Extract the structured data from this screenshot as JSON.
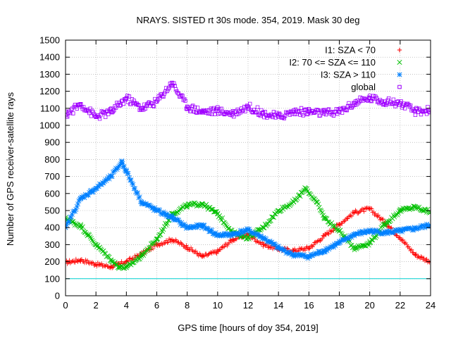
{
  "chart_data": {
    "type": "scatter",
    "title": "NRAYS. SISTED rt 30s mode. 354, 2019. Mask 30 deg",
    "xlabel": "GPS time [hours of doy 354, 2019]",
    "ylabel": "Number of GPS receiver-satellite rays",
    "xlim": [
      0,
      24
    ],
    "ylim": [
      0,
      1500
    ],
    "xticks": [
      0,
      2,
      4,
      6,
      8,
      10,
      12,
      14,
      16,
      18,
      20,
      22,
      24
    ],
    "yticks": [
      0,
      100,
      200,
      300,
      400,
      500,
      600,
      700,
      800,
      900,
      1000,
      1100,
      1200,
      1300,
      1400,
      1500
    ],
    "grid": true,
    "legend_position": "top-right",
    "series": [
      {
        "name": "I1: SZA < 70",
        "marker": "plus",
        "color": "#ff0000",
        "x": [
          0,
          1,
          2,
          3,
          3.5,
          4,
          5,
          6,
          7,
          8,
          9,
          10,
          11,
          12,
          13,
          14,
          15,
          16,
          17,
          18,
          19,
          20,
          21,
          22,
          23,
          24
        ],
        "y": [
          195,
          210,
          185,
          170,
          185,
          200,
          245,
          300,
          330,
          285,
          230,
          260,
          330,
          360,
          300,
          275,
          265,
          280,
          350,
          420,
          490,
          510,
          430,
          340,
          240,
          200
        ]
      },
      {
        "name": "I2: 70 <= SZA <= 110",
        "marker": "x",
        "color": "#00c000",
        "x": [
          0,
          1,
          2,
          3,
          3.5,
          4,
          5,
          6,
          7,
          8,
          9,
          10,
          11,
          12,
          13,
          14,
          15,
          15.8,
          16.5,
          17,
          18,
          19,
          20,
          21,
          22,
          23,
          24
        ],
        "y": [
          450,
          410,
          300,
          210,
          170,
          165,
          235,
          330,
          480,
          530,
          540,
          480,
          370,
          340,
          400,
          500,
          550,
          630,
          550,
          460,
          380,
          280,
          310,
          420,
          500,
          520,
          490
        ]
      },
      {
        "name": "I3: SZA > 110",
        "marker": "star",
        "color": "#0080ff",
        "x": [
          0,
          1,
          2,
          3,
          3.7,
          4,
          5,
          6,
          7,
          8,
          9,
          10,
          11,
          12,
          13,
          14,
          15,
          16,
          17,
          18,
          19,
          20,
          21,
          22,
          23,
          24
        ],
        "y": [
          400,
          570,
          630,
          700,
          785,
          730,
          550,
          500,
          460,
          400,
          410,
          355,
          360,
          385,
          340,
          280,
          240,
          230,
          265,
          310,
          360,
          380,
          370,
          380,
          395,
          415
        ]
      },
      {
        "name": "global",
        "marker": "square",
        "color": "#a000ff",
        "x": [
          0,
          1,
          2,
          3,
          4,
          5,
          6,
          7,
          8,
          9,
          10,
          11,
          12,
          13,
          14,
          15,
          16,
          17,
          18,
          19,
          20,
          21,
          22,
          23,
          24
        ],
        "y": [
          1060,
          1125,
          1050,
          1080,
          1160,
          1100,
          1140,
          1250,
          1110,
          1080,
          1085,
          1070,
          1110,
          1070,
          1050,
          1080,
          1080,
          1070,
          1080,
          1130,
          1160,
          1140,
          1130,
          1080,
          1090
        ]
      },
      {
        "name": "",
        "marker": "line",
        "color": "#00d0d0",
        "x": [
          0,
          24
        ],
        "y": [
          100,
          100
        ]
      }
    ]
  }
}
